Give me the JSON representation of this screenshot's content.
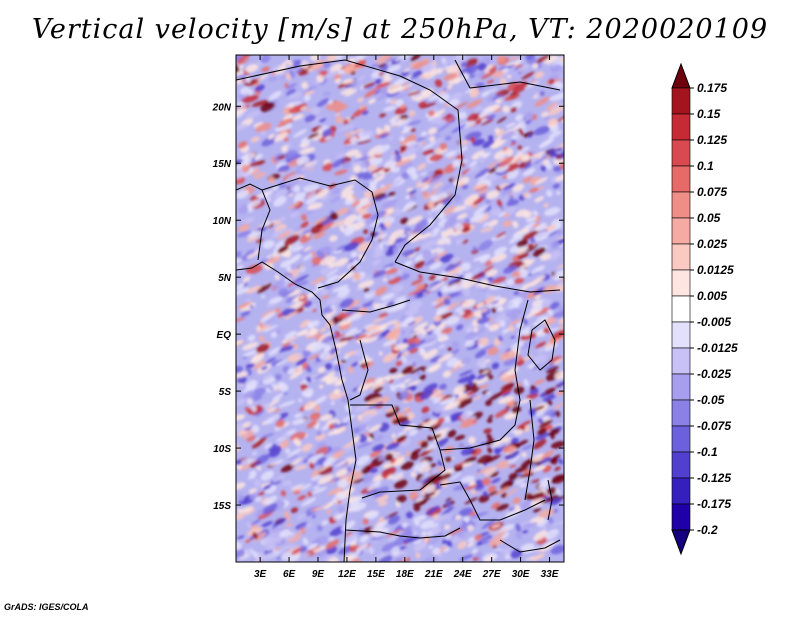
{
  "page": {
    "title": "Vertical velocity [m/s] at 250hPa, VT: 2020020109",
    "credit": "GrADS: IGES/COLA"
  },
  "chart_data": {
    "type": "heatmap",
    "title": "Vertical velocity [m/s] at 250hPa, VT: 2020020109",
    "variable": "Vertical velocity",
    "units": "m/s",
    "level": "250hPa",
    "valid_time": "2020020109",
    "x_ticks": [
      "3E",
      "6E",
      "9E",
      "12E",
      "15E",
      "18E",
      "21E",
      "24E",
      "27E",
      "30E",
      "33E"
    ],
    "y_ticks": [
      "20N",
      "15N",
      "10N",
      "5N",
      "EQ",
      "5S",
      "10S",
      "15S"
    ],
    "xlim_deg": [
      0.5,
      34.5
    ],
    "ylim_deg": [
      -20,
      24.5
    ],
    "colorbar": {
      "labels": [
        "0.175",
        "0.15",
        "0.125",
        "0.1",
        "0.075",
        "0.05",
        "0.025",
        "0.0125",
        "0.005",
        "-0.005",
        "-0.0125",
        "-0.025",
        "-0.05",
        "-0.075",
        "-0.1",
        "-0.125",
        "-0.175",
        "-0.2"
      ],
      "colors": [
        "#6e000e",
        "#a3141e",
        "#c62a35",
        "#d84a4f",
        "#e66b68",
        "#ef8e87",
        "#f5aba3",
        "#f9c9c2",
        "#fde5e1",
        "#ffffff",
        "#e3e0fb",
        "#c7c1f5",
        "#a79fee",
        "#8a80e6",
        "#6d60dc",
        "#5140cf",
        "#3520be",
        "#1f00a8",
        "#14007e"
      ]
    },
    "field_description": "Noisy alternating positive (red) and negative (blue) vertical velocity over central Africa; strongest ascent (red) clusters near 5S-15S, 15E-33E; predominantly weak descent (blue) elsewhere."
  }
}
